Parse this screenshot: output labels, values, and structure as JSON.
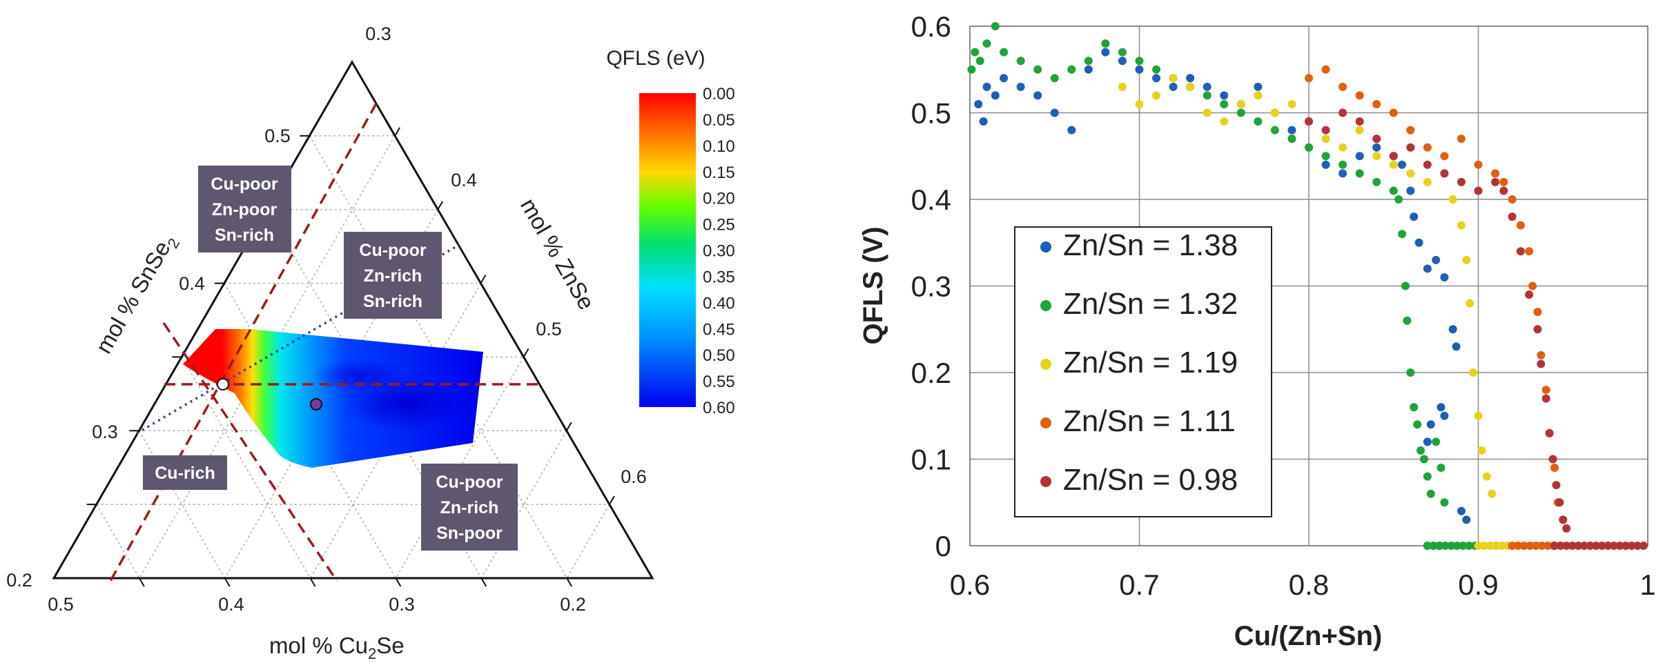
{
  "chart_data": [
    {
      "type": "ternary-heatmap",
      "axes": {
        "left": {
          "label_pre": "mol % SnSe",
          "label_sub": "2",
          "ticks": [
            "0.3",
            "0.4",
            "0.5"
          ]
        },
        "right": {
          "label": "mol % ZnSe",
          "ticks": [
            "0.4",
            "0.5",
            "0.6"
          ]
        },
        "bottom": {
          "label_pre": "mol % Cu",
          "label_sub": "2",
          "label_post": "Se",
          "ticks": [
            "0.5",
            "0.4",
            "0.3",
            "0.2"
          ]
        },
        "corner_top": "0.3",
        "corner_left": "0.2"
      },
      "colorbar": {
        "title": "QFLS (eV)",
        "ticks": [
          "0.00",
          "0.05",
          "0.10",
          "0.15",
          "0.20",
          "0.25",
          "0.30",
          "0.35",
          "0.40",
          "0.45",
          "0.50",
          "0.55",
          "0.60"
        ],
        "min": 0.0,
        "max": 0.6
      },
      "region_labels": [
        {
          "lines": [
            "Cu-poor",
            "Zn-poor",
            "Sn-rich"
          ]
        },
        {
          "lines": [
            "Cu-poor",
            "Zn-rich",
            "Sn-rich"
          ]
        },
        {
          "lines": [
            "Cu-rich"
          ]
        },
        {
          "lines": [
            "Cu-poor",
            "Zn-rich",
            "Sn-poor"
          ]
        }
      ],
      "markers": [
        {
          "name": "stoichiometric-point",
          "style": "white"
        },
        {
          "name": "sample-point",
          "style": "purple"
        }
      ]
    },
    {
      "type": "scatter",
      "ylabel": "QFLS (V)",
      "xlabel": "Cu/(Zn+Sn)",
      "xlim": [
        0.6,
        1.0
      ],
      "ylim": [
        0,
        0.6
      ],
      "x_ticks": [
        "0.6",
        "0.7",
        "0.8",
        "0.9",
        "1"
      ],
      "y_ticks": [
        "0",
        "0.1",
        "0.2",
        "0.3",
        "0.4",
        "0.5",
        "0.6"
      ],
      "grid": true,
      "legend_position": "left-middle",
      "series": [
        {
          "name": "Zn/Sn = 1.38",
          "color": "#1f5fb4",
          "points": [
            [
              0.605,
              0.51
            ],
            [
              0.608,
              0.49
            ],
            [
              0.61,
              0.53
            ],
            [
              0.615,
              0.52
            ],
            [
              0.62,
              0.54
            ],
            [
              0.63,
              0.53
            ],
            [
              0.64,
              0.52
            ],
            [
              0.65,
              0.5
            ],
            [
              0.66,
              0.48
            ],
            [
              0.67,
              0.55
            ],
            [
              0.68,
              0.57
            ],
            [
              0.69,
              0.56
            ],
            [
              0.7,
              0.55
            ],
            [
              0.71,
              0.54
            ],
            [
              0.72,
              0.53
            ],
            [
              0.73,
              0.54
            ],
            [
              0.74,
              0.53
            ],
            [
              0.75,
              0.52
            ],
            [
              0.76,
              0.51
            ],
            [
              0.77,
              0.53
            ],
            [
              0.78,
              0.5
            ],
            [
              0.79,
              0.48
            ],
            [
              0.8,
              0.46
            ],
            [
              0.81,
              0.44
            ],
            [
              0.82,
              0.43
            ],
            [
              0.83,
              0.45
            ],
            [
              0.84,
              0.46
            ],
            [
              0.85,
              0.45
            ],
            [
              0.855,
              0.44
            ],
            [
              0.86,
              0.41
            ],
            [
              0.862,
              0.38
            ],
            [
              0.865,
              0.35
            ],
            [
              0.87,
              0.32
            ],
            [
              0.875,
              0.33
            ],
            [
              0.88,
              0.31
            ],
            [
              0.872,
              0.14
            ],
            [
              0.878,
              0.16
            ],
            [
              0.87,
              0.12
            ],
            [
              0.88,
              0.15
            ],
            [
              0.885,
              0.25
            ],
            [
              0.887,
              0.23
            ],
            [
              0.89,
              0.04
            ],
            [
              0.893,
              0.03
            ]
          ]
        },
        {
          "name": "Zn/Sn = 1.32",
          "color": "#22a33a",
          "points": [
            [
              0.601,
              0.55
            ],
            [
              0.603,
              0.57
            ],
            [
              0.606,
              0.56
            ],
            [
              0.61,
              0.58
            ],
            [
              0.615,
              0.6
            ],
            [
              0.62,
              0.57
            ],
            [
              0.63,
              0.56
            ],
            [
              0.64,
              0.55
            ],
            [
              0.65,
              0.54
            ],
            [
              0.66,
              0.55
            ],
            [
              0.67,
              0.56
            ],
            [
              0.68,
              0.58
            ],
            [
              0.69,
              0.57
            ],
            [
              0.7,
              0.56
            ],
            [
              0.71,
              0.55
            ],
            [
              0.72,
              0.54
            ],
            [
              0.73,
              0.53
            ],
            [
              0.74,
              0.52
            ],
            [
              0.75,
              0.51
            ],
            [
              0.76,
              0.5
            ],
            [
              0.77,
              0.49
            ],
            [
              0.78,
              0.48
            ],
            [
              0.79,
              0.47
            ],
            [
              0.8,
              0.46
            ],
            [
              0.81,
              0.45
            ],
            [
              0.82,
              0.44
            ],
            [
              0.83,
              0.43
            ],
            [
              0.84,
              0.42
            ],
            [
              0.85,
              0.41
            ],
            [
              0.853,
              0.4
            ],
            [
              0.855,
              0.36
            ],
            [
              0.857,
              0.3
            ],
            [
              0.858,
              0.26
            ],
            [
              0.86,
              0.2
            ],
            [
              0.862,
              0.16
            ],
            [
              0.864,
              0.14
            ],
            [
              0.866,
              0.11
            ],
            [
              0.868,
              0.1
            ],
            [
              0.87,
              0.08
            ],
            [
              0.872,
              0.06
            ],
            [
              0.875,
              0.12
            ],
            [
              0.878,
              0.09
            ],
            [
              0.88,
              0.05
            ]
          ]
        },
        {
          "name": "Zn/Sn = 1.19",
          "color": "#e6d21e",
          "points": [
            [
              0.69,
              0.53
            ],
            [
              0.7,
              0.51
            ],
            [
              0.71,
              0.52
            ],
            [
              0.72,
              0.54
            ],
            [
              0.73,
              0.53
            ],
            [
              0.74,
              0.5
            ],
            [
              0.75,
              0.49
            ],
            [
              0.76,
              0.51
            ],
            [
              0.77,
              0.52
            ],
            [
              0.78,
              0.5
            ],
            [
              0.79,
              0.51
            ],
            [
              0.8,
              0.49
            ],
            [
              0.81,
              0.47
            ],
            [
              0.82,
              0.46
            ],
            [
              0.83,
              0.48
            ],
            [
              0.84,
              0.45
            ],
            [
              0.85,
              0.44
            ],
            [
              0.86,
              0.43
            ],
            [
              0.87,
              0.42
            ],
            [
              0.88,
              0.43
            ],
            [
              0.885,
              0.4
            ],
            [
              0.89,
              0.37
            ],
            [
              0.893,
              0.33
            ],
            [
              0.895,
              0.28
            ],
            [
              0.897,
              0.2
            ],
            [
              0.9,
              0.15
            ],
            [
              0.902,
              0.11
            ],
            [
              0.905,
              0.08
            ],
            [
              0.908,
              0.06
            ]
          ]
        },
        {
          "name": "Zn/Sn = 1.11",
          "color": "#e06010",
          "points": [
            [
              0.8,
              0.54
            ],
            [
              0.81,
              0.55
            ],
            [
              0.82,
              0.53
            ],
            [
              0.83,
              0.52
            ],
            [
              0.84,
              0.51
            ],
            [
              0.85,
              0.5
            ],
            [
              0.86,
              0.48
            ],
            [
              0.87,
              0.46
            ],
            [
              0.88,
              0.45
            ],
            [
              0.89,
              0.47
            ],
            [
              0.9,
              0.44
            ],
            [
              0.91,
              0.43
            ],
            [
              0.915,
              0.42
            ],
            [
              0.92,
              0.4
            ],
            [
              0.925,
              0.37
            ],
            [
              0.93,
              0.34
            ],
            [
              0.932,
              0.3
            ],
            [
              0.935,
              0.27
            ],
            [
              0.937,
              0.22
            ],
            [
              0.94,
              0.18
            ],
            [
              0.942,
              0.13
            ],
            [
              0.945,
              0.09
            ],
            [
              0.947,
              0.05
            ],
            [
              0.95,
              0.03
            ]
          ]
        },
        {
          "name": "Zn/Sn = 0.98",
          "color": "#b23438",
          "points": [
            [
              0.8,
              0.49
            ],
            [
              0.81,
              0.48
            ],
            [
              0.82,
              0.5
            ],
            [
              0.83,
              0.49
            ],
            [
              0.84,
              0.47
            ],
            [
              0.85,
              0.45
            ],
            [
              0.86,
              0.46
            ],
            [
              0.87,
              0.44
            ],
            [
              0.88,
              0.43
            ],
            [
              0.89,
              0.42
            ],
            [
              0.9,
              0.41
            ],
            [
              0.91,
              0.42
            ],
            [
              0.915,
              0.41
            ],
            [
              0.92,
              0.38
            ],
            [
              0.925,
              0.34
            ],
            [
              0.93,
              0.29
            ],
            [
              0.935,
              0.25
            ],
            [
              0.937,
              0.21
            ],
            [
              0.94,
              0.17
            ],
            [
              0.942,
              0.13
            ],
            [
              0.944,
              0.1
            ],
            [
              0.946,
              0.07
            ],
            [
              0.948,
              0.05
            ],
            [
              0.95,
              0.03
            ],
            [
              0.952,
              0.02
            ]
          ]
        }
      ],
      "zero_bands": [
        {
          "color": "#1f5fb4",
          "x_from": 0.87,
          "x_to": 0.88
        },
        {
          "color": "#22a33a",
          "x_from": 0.87,
          "x_to": 0.9
        },
        {
          "color": "#e6d21e",
          "x_from": 0.9,
          "x_to": 0.92
        },
        {
          "color": "#e06010",
          "x_from": 0.92,
          "x_to": 0.945
        },
        {
          "color": "#b23438",
          "x_from": 0.945,
          "x_to": 1.0
        }
      ]
    }
  ]
}
